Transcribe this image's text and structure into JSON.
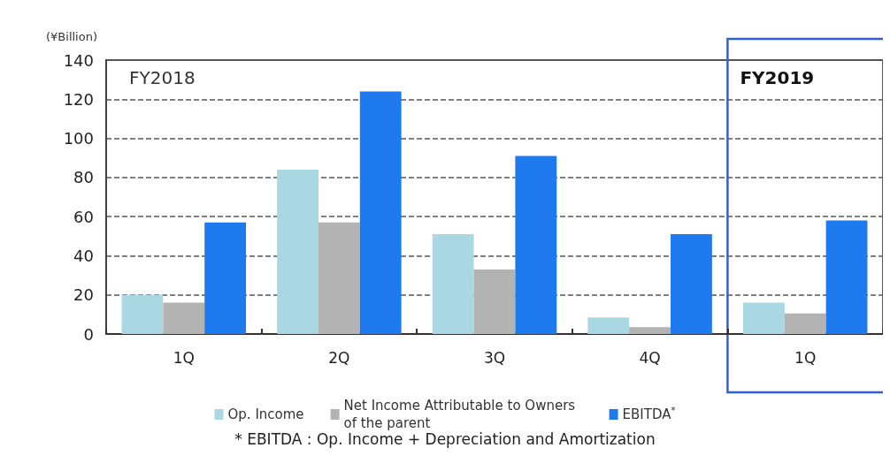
{
  "chart_data": {
    "type": "bar",
    "ylabel": "(¥Billion)",
    "categories": [
      "1Q",
      "2Q",
      "3Q",
      "4Q",
      "1Q"
    ],
    "series": [
      {
        "name": "Op. Income",
        "color": "#a9d8e2",
        "values": [
          20,
          84,
          51,
          8.5,
          16
        ]
      },
      {
        "name": "Net Income Attributable to Owners of the parent",
        "color": "#b3b3b3",
        "values": [
          16,
          57,
          33,
          3.5,
          10.5
        ]
      },
      {
        "name": "EBITDA$^{*}$",
        "color": "#1f7af0",
        "values": [
          57,
          124,
          91,
          51,
          58
        ]
      }
    ],
    "ylim": [
      0,
      140
    ],
    "yticks": [
      0,
      20,
      40,
      60,
      80,
      100,
      120,
      140
    ],
    "grid": "y",
    "legend": "bottom",
    "annotations": [
      "FY2018",
      "FY2019",
      "* EBITDA : Op. Income + Depreciation and Amortization"
    ]
  }
}
